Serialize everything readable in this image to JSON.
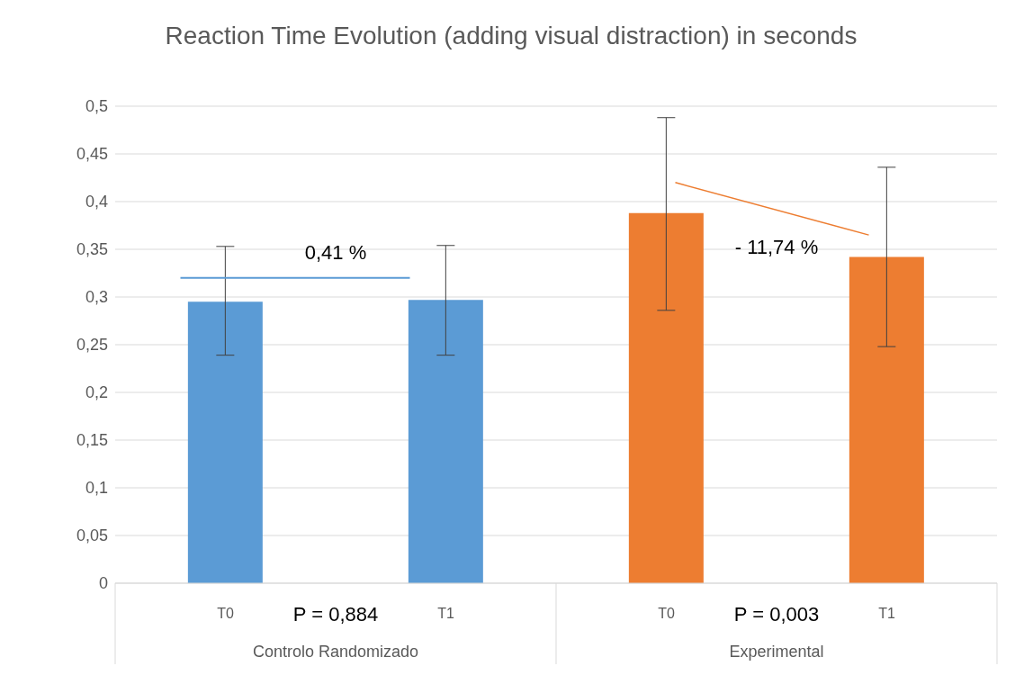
{
  "chart_data": {
    "type": "bar",
    "title": "Reaction Time Evolution (adding visual distraction) in seconds",
    "categories": [
      "T0",
      "T1",
      "T0",
      "T1"
    ],
    "values": [
      0.295,
      0.297,
      0.388,
      0.342
    ],
    "colors": [
      "#5b9bd5",
      "#5b9bd5",
      "#ed7d31",
      "#ed7d31"
    ],
    "errors": [
      [
        0.239,
        0.353
      ],
      [
        0.239,
        0.354
      ],
      [
        0.286,
        0.488
      ],
      [
        0.248,
        0.436
      ]
    ],
    "ylim": [
      0,
      0.5
    ],
    "yticks": [
      {
        "value": 0,
        "label": "0"
      },
      {
        "value": 0.05,
        "label": "0,05"
      },
      {
        "value": 0.1,
        "label": "0,1"
      },
      {
        "value": 0.15,
        "label": "0,15"
      },
      {
        "value": 0.2,
        "label": "0,2"
      },
      {
        "value": 0.25,
        "label": "0,25"
      },
      {
        "value": 0.3,
        "label": "0,3"
      },
      {
        "value": 0.35,
        "label": "0,35"
      },
      {
        "value": 0.4,
        "label": "0,4"
      },
      {
        "value": 0.45,
        "label": "0,45"
      },
      {
        "value": 0.5,
        "label": "0,5"
      }
    ],
    "grid": "y",
    "annotations": [
      "0,41 %",
      "- 11,74 %",
      "P = 0,884",
      "P = 0,003",
      "Controlo Randomizado",
      "Experimental"
    ]
  }
}
